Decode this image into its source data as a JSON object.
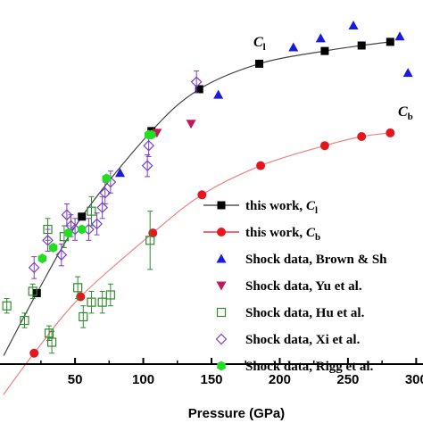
{
  "chart_data": {
    "type": "scatter",
    "title": "",
    "xlabel": "Pressure (GPa)",
    "ylabel": "",
    "xlim": [
      -5,
      305
    ],
    "ylim": [
      0,
      1
    ],
    "x_ticks": [
      50,
      100,
      150,
      200,
      250,
      300
    ],
    "x_tick_labels": [
      "50",
      "100",
      "150",
      "200",
      "250",
      "300"
    ],
    "grid": false,
    "legend_position": "bottom-right",
    "curve_labels": [
      {
        "main": "C",
        "sub": "l",
        "series": "this work, Cl"
      },
      {
        "main": "C",
        "sub": "b",
        "series": "this work, Cb"
      }
    ],
    "series": [
      {
        "name": "this work, Cl",
        "legend_main": "this work, ",
        "legend_italic": "C",
        "legend_sub": "l",
        "marker": "square-filled",
        "color": "#000000",
        "line": true,
        "x": [
          22,
          55,
          106,
          141,
          185,
          233,
          260,
          281
        ],
        "y": [
          0.195,
          0.405,
          0.64,
          0.755,
          0.825,
          0.86,
          0.875,
          0.885
        ]
      },
      {
        "name": "this work, Cb",
        "legend_main": "this work, ",
        "legend_italic": "C",
        "legend_sub": "b",
        "marker": "circle-filled",
        "color": "#e8141e",
        "line": true,
        "x": [
          20,
          54,
          107,
          143,
          186,
          233,
          260,
          281
        ],
        "y": [
          0.03,
          0.185,
          0.36,
          0.465,
          0.545,
          0.6,
          0.625,
          0.635
        ]
      },
      {
        "name": "Shock data, Brown & Sh",
        "legend_text": "Shock data, Brown & Sh",
        "marker": "triangle-up",
        "color": "#1a1adc",
        "x": [
          83,
          155,
          210,
          230,
          254,
          288,
          294
        ],
        "y": [
          0.525,
          0.74,
          0.87,
          0.895,
          0.93,
          0.9,
          0.8
        ]
      },
      {
        "name": "Shock data, Yu et al.",
        "legend_text": "Shock data, Yu et al.",
        "marker": "triangle-down",
        "color": "#c2185b",
        "x": [
          110,
          135
        ],
        "y": [
          0.635,
          0.66
        ]
      },
      {
        "name": "Shock data, Hu et al.",
        "legend_text": "Shock data, Hu et al.",
        "marker": "square-open",
        "color": "#2e8b2e",
        "x": [
          0,
          13,
          19,
          31,
          33,
          52,
          56,
          62,
          70,
          76,
          30,
          42,
          62,
          105
        ],
        "y": [
          0.16,
          0.12,
          0.2,
          0.085,
          0.06,
          0.21,
          0.13,
          0.17,
          0.17,
          0.19,
          0.37,
          0.35,
          0.42,
          0.34
        ],
        "yerr": [
          0.02,
          0.02,
          0.02,
          0.02,
          0.03,
          0.03,
          0.03,
          0.03,
          0.03,
          0.03,
          0.03,
          0.03,
          0.04,
          0.08
        ]
      },
      {
        "name": "Shock data, Xi et al.",
        "legend_text": "Shock data, Xi et al.",
        "marker": "diamond-open",
        "color": "#7a3fc4",
        "x": [
          20,
          30,
          40,
          44,
          47,
          50,
          60,
          66,
          70,
          72,
          76,
          103,
          104,
          139
        ],
        "y": [
          0.265,
          0.34,
          0.3,
          0.41,
          0.38,
          0.37,
          0.37,
          0.385,
          0.43,
          0.47,
          0.5,
          0.545,
          0.6,
          0.775
        ],
        "yerr": [
          0.03,
          0.03,
          0.03,
          0.03,
          0.03,
          0.03,
          0.03,
          0.03,
          0.03,
          0.03,
          0.03,
          0.03,
          0.03,
          0.03
        ]
      },
      {
        "name": "Shock data, Rigg et al.",
        "legend_text": "Shock data, Rigg et al.",
        "marker": "hexagon-filled",
        "color": "#22dd22",
        "x": [
          26,
          34,
          45,
          55,
          73,
          104,
          106
        ],
        "y": [
          0.29,
          0.32,
          0.36,
          0.37,
          0.51,
          0.63,
          0.63
        ]
      }
    ]
  }
}
